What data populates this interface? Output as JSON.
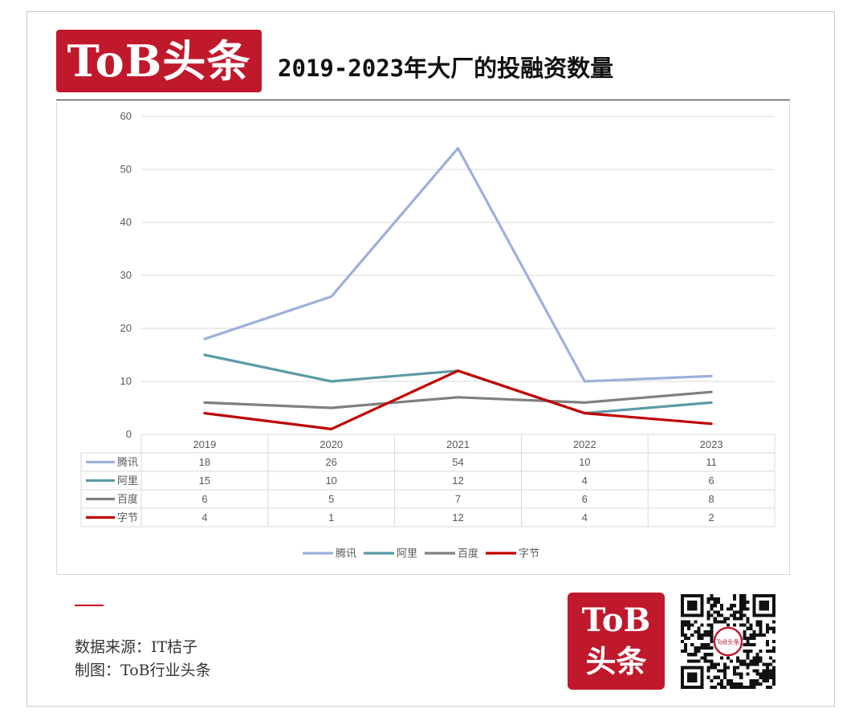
{
  "header": {
    "logo_text": "ToB头条",
    "title": "2019-2023年大厂的投融资数量"
  },
  "footer": {
    "source": "数据来源：IT桔子",
    "credit": "制图：ToB行业头条",
    "logo_line1": "ToB",
    "logo_line2": "头条",
    "qr_badge": "ToB头条"
  },
  "colors": {
    "brand": "#c0192c",
    "tencent": "#9db0dc",
    "alibaba": "#5b9aa6",
    "baidu": "#7f7f7f",
    "bytedance": "#c00000",
    "grid": "#d9d9d9"
  },
  "chart_data": {
    "type": "line",
    "title": "",
    "xlabel": "",
    "ylabel": "",
    "categories": [
      "2019",
      "2020",
      "2021",
      "2022",
      "2023"
    ],
    "ylim": [
      0,
      60
    ],
    "yticks": [
      0,
      10,
      20,
      30,
      40,
      50,
      60
    ],
    "grid": true,
    "legend": "bottom",
    "data_table": true,
    "series": [
      {
        "name": "腾讯",
        "values": [
          18,
          26,
          54,
          10,
          11
        ],
        "color": "#9db0dc"
      },
      {
        "name": "阿里",
        "values": [
          15,
          10,
          12,
          4,
          6
        ],
        "color": "#5b9aa6"
      },
      {
        "name": "百度",
        "values": [
          6,
          5,
          7,
          6,
          8
        ],
        "color": "#7f7f7f"
      },
      {
        "name": "字节",
        "values": [
          4,
          1,
          12,
          4,
          2
        ],
        "color": "#c00000"
      }
    ]
  }
}
